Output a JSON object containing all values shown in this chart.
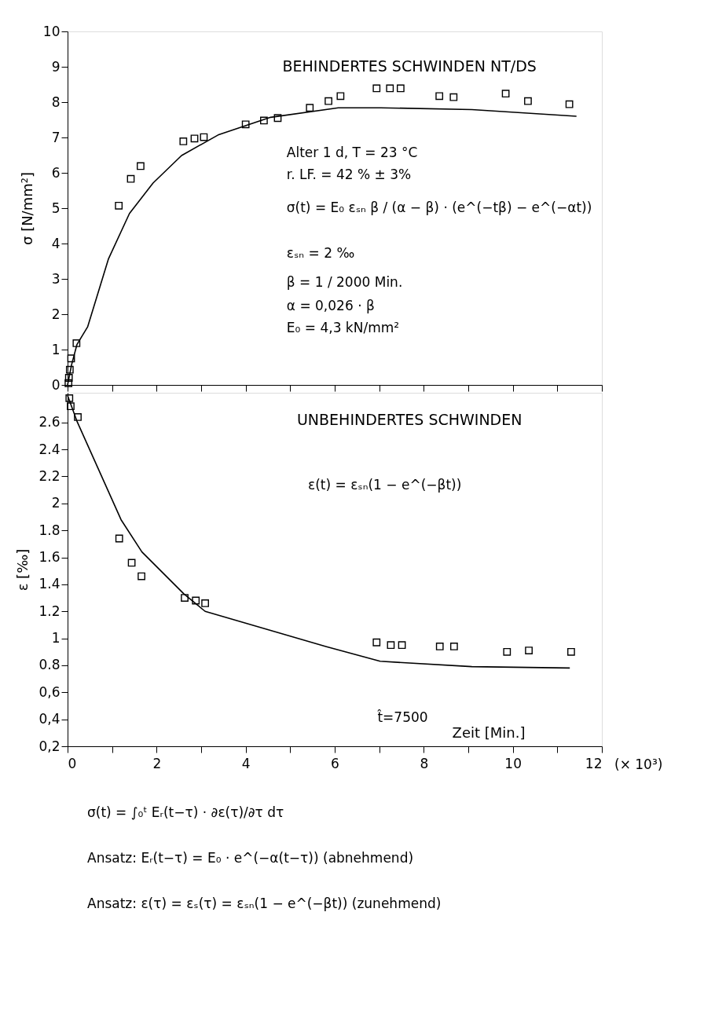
{
  "chart_data": [
    {
      "type": "scatter",
      "title": "BEHINDERTES SCHWINDEN NT/DS",
      "ylabel": "σ [N/mm²]",
      "xlim": [
        0,
        12
      ],
      "ylim": [
        0,
        10
      ],
      "xticks": [
        0,
        {
          "value": 1,
          "label": null
        },
        2,
        {
          "value": 3,
          "label": null
        },
        4,
        {
          "value": 5,
          "label": null
        },
        6,
        {
          "value": 7,
          "label": null
        },
        8,
        {
          "value": 9,
          "label": null
        },
        10,
        {
          "value": 11,
          "label": null
        },
        12
      ],
      "yticks": [
        0,
        1,
        2,
        3,
        4,
        5,
        6,
        7,
        8,
        9,
        10
      ],
      "tick_labels": "y",
      "grid": false,
      "marker": "square",
      "series": [
        {
          "color": "#000000",
          "x": [
            0.02,
            0.03,
            0.05,
            0.08,
            0.2,
            1.15,
            1.42,
            1.64,
            2.6,
            2.85,
            3.06,
            4.0,
            4.41,
            4.72,
            5.44,
            5.86,
            6.13,
            6.94,
            7.24,
            7.48,
            8.35,
            8.67,
            9.84,
            10.34,
            11.27
          ],
          "values": [
            0.05,
            0.2,
            0.43,
            0.75,
            1.18,
            5.07,
            5.83,
            6.19,
            6.89,
            6.97,
            7.01,
            7.37,
            7.48,
            7.55,
            7.84,
            8.03,
            8.17,
            8.39,
            8.39,
            8.39,
            8.17,
            8.14,
            8.24,
            8.03,
            7.94
          ]
        },
        {
          "type": "line",
          "color": "#000000",
          "marker": "none",
          "line_style": "solid",
          "x": [
            0,
            0.09,
            0.21,
            0.45,
            0.92,
            1.39,
            1.92,
            2.56,
            3.38,
            4.56,
            6.08,
            7.03,
            9.08,
            11.43
          ],
          "values": [
            0,
            0.57,
            1.14,
            1.64,
            3.57,
            4.85,
            5.71,
            6.49,
            7.07,
            7.57,
            7.84,
            7.84,
            7.79,
            7.6
          ]
        }
      ],
      "annotations": [
        "Alter 1 d,   T = 23 °C",
        "r. LF. = 42 % ± 3%",
        "σ(t) = E₀ εₛₙ β / (α − β) · (e^(−tβ) − e^(−αt))",
        "εₛₙ = 2 ‰",
        "β = 1 / 2000   Min.",
        "α = 0,026 · β",
        "E₀ = 4,3 kN/mm²"
      ]
    },
    {
      "type": "scatter",
      "title": "UNBEHINDERTES SCHWINDEN",
      "ylabel": "ε [‰]",
      "xlabel": "Zeit [Min.]",
      "xlim": [
        0,
        12
      ],
      "ylim": [
        0.2,
        2.82
      ],
      "xticks": [
        0,
        {
          "value": 1,
          "label": null
        },
        2,
        {
          "value": 3,
          "label": null
        },
        4,
        {
          "value": 5,
          "label": null
        },
        6,
        {
          "value": 7,
          "label": null
        },
        8,
        {
          "value": 9,
          "label": null
        },
        10,
        {
          "value": 11,
          "label": null
        },
        12
      ],
      "yticks": [
        {
          "value": 0.2,
          "label": "0,2"
        },
        {
          "value": 0.4,
          "label": "0,4"
        },
        {
          "value": 0.6,
          "label": "0,6"
        },
        0.8,
        1,
        1.2,
        1.4,
        1.6,
        1.8,
        2,
        2.2,
        2.4,
        2.6
      ],
      "grid": false,
      "marker": "square",
      "series": [
        {
          "color": "#000000",
          "x": [
            0.04,
            0.07,
            0.23,
            1.16,
            1.44,
            1.66,
            2.63,
            2.88,
            3.09,
            6.94,
            7.26,
            7.51,
            8.36,
            8.68,
            9.87,
            10.36,
            11.31
          ],
          "values": [
            2.78,
            2.72,
            2.64,
            1.74,
            1.56,
            1.46,
            1.3,
            1.28,
            1.26,
            0.97,
            0.95,
            0.95,
            0.94,
            0.94,
            0.9,
            0.91,
            0.9
          ]
        },
        {
          "type": "line",
          "color": "#000000",
          "marker": "none",
          "line_style": "solid",
          "x": [
            0,
            0.21,
            1.2,
            1.67,
            2.61,
            3.09,
            5.8,
            7.02,
            9.08,
            11.28
          ],
          "values": [
            2.8,
            2.61,
            1.88,
            1.64,
            1.33,
            1.2,
            0.94,
            0.83,
            0.79,
            0.78
          ]
        }
      ],
      "annotations": [
        "ε(t) = εₛₙ(1 − e^(−βt))",
        "t̂=7500",
        "(× 10³)",
        "σ(t) = ∫₀ᵗ Eᵣ(t−τ) · ∂ε(τ)/∂τ dτ",
        "Ansatz:   Eᵣ(t−τ) = E₀ · e^(−α(t−τ))     (abnehmend)",
        "Ansatz:   ε(τ) = εₛ(τ) = εₛₙ(1 − e^(−βt))     (zunehmend)"
      ]
    }
  ]
}
